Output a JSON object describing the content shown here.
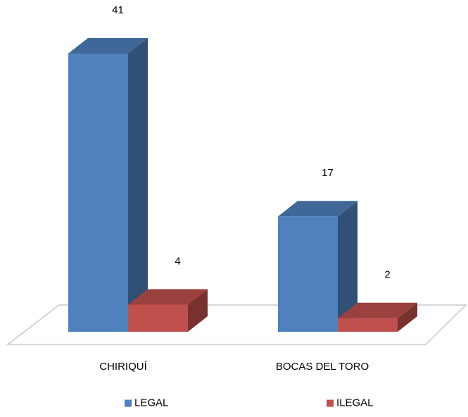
{
  "chart_data": {
    "type": "bar",
    "style": "3d-clustered-column",
    "categories": [
      "CHIRIQUÍ",
      "BOCAS DEL TORO"
    ],
    "series": [
      {
        "name": "LEGAL",
        "values": [
          41,
          17
        ],
        "color": "#4f81bd"
      },
      {
        "name": "ILEGAL",
        "values": [
          4,
          2
        ],
        "color": "#c0504d"
      }
    ],
    "data_labels": true,
    "legend_position": "bottom",
    "grid": false,
    "ylim": [
      0,
      41
    ]
  }
}
